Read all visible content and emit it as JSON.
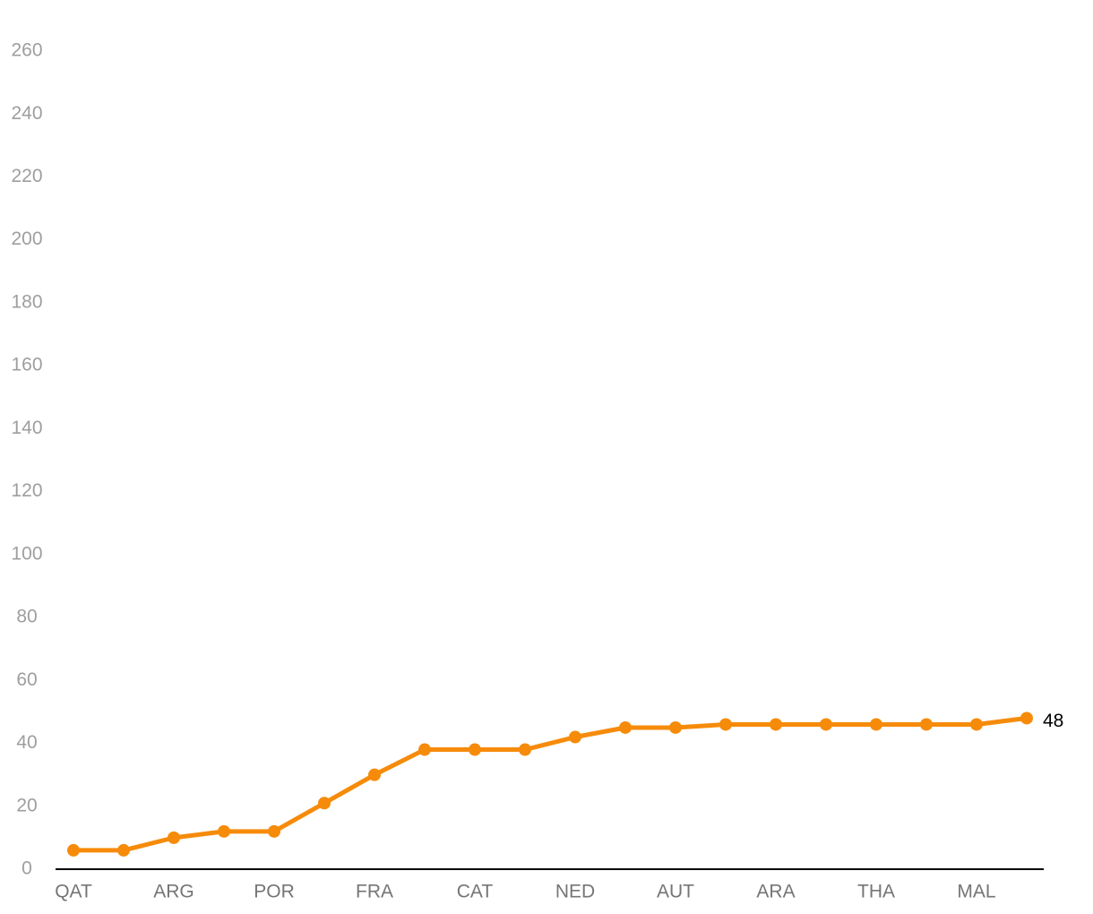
{
  "chart_data": {
    "type": "line",
    "categories": [
      "QAT",
      null,
      "ARG",
      null,
      "POR",
      null,
      "FRA",
      null,
      "CAT",
      null,
      "NED",
      null,
      "AUT",
      null,
      "ARA",
      null,
      "THA",
      null,
      "MAL",
      null
    ],
    "series": [
      {
        "color": "#f68b0a",
        "values": [
          6,
          6,
          10,
          12,
          12,
          21,
          30,
          38,
          38,
          38,
          42,
          45,
          45,
          46,
          46,
          46,
          46,
          46,
          46,
          48
        ]
      }
    ],
    "ylim": [
      0,
      260
    ],
    "yticks": [
      0,
      20,
      40,
      60,
      80,
      100,
      120,
      140,
      160,
      180,
      200,
      220,
      240,
      260
    ],
    "grid": false
  }
}
